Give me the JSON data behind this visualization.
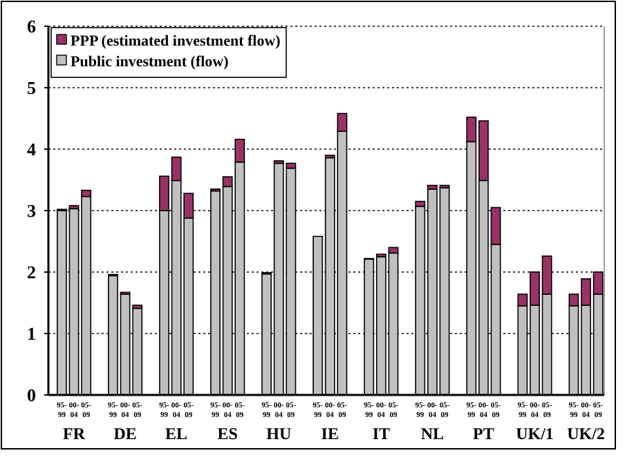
{
  "chart_data": {
    "type": "bar",
    "stacked": true,
    "categories": [
      "95-99",
      "00-04",
      "05-09",
      "95-99",
      "00-04",
      "05-09",
      "95-99",
      "00-04",
      "05-09",
      "95-99",
      "00-04",
      "05-09",
      "95-99",
      "00-04",
      "05-09",
      "95-99",
      "00-04",
      "05-09",
      "95-99",
      "00-04",
      "05-09",
      "95-99",
      "00-04",
      "05-09",
      "95-99",
      "00-04",
      "05-09",
      "95-99",
      "00-04",
      "05-09",
      "95-99",
      "00-04",
      "05-09"
    ],
    "series": [
      {
        "name": "Public investment (flow)",
        "color": "#c0c0c0",
        "values": [
          3.0,
          3.03,
          3.23,
          1.94,
          1.64,
          1.41,
          3.0,
          3.49,
          2.88,
          3.32,
          3.39,
          3.79,
          1.97,
          3.77,
          3.69,
          2.58,
          3.86,
          4.29,
          2.21,
          2.25,
          2.31,
          3.07,
          3.35,
          3.37,
          4.12,
          3.49,
          2.45,
          1.45,
          1.46,
          1.64,
          1.45,
          1.46,
          1.64
        ]
      },
      {
        "name": "PPP (estimated investment flow)",
        "color": "#993366",
        "values": [
          0.02,
          0.05,
          0.1,
          0.02,
          0.03,
          0.05,
          0.56,
          0.38,
          0.4,
          0.03,
          0.16,
          0.37,
          0.02,
          0.04,
          0.08,
          0,
          0.04,
          0.29,
          0.01,
          0.04,
          0.09,
          0.08,
          0.06,
          0.04,
          0.4,
          0.97,
          0.6,
          0.19,
          0.54,
          0.62,
          0.19,
          0.43,
          0.36
        ]
      }
    ],
    "annotations": [
      "FR",
      "DE",
      "EL",
      "ES",
      "HU",
      "IE",
      "IT",
      "NL",
      "PT",
      "UK/1",
      "UK/2"
    ],
    "ylim": [
      0,
      6
    ],
    "yticks": [
      0,
      1,
      2,
      3,
      4,
      5,
      6
    ],
    "grid": "y",
    "legend": "top left"
  }
}
